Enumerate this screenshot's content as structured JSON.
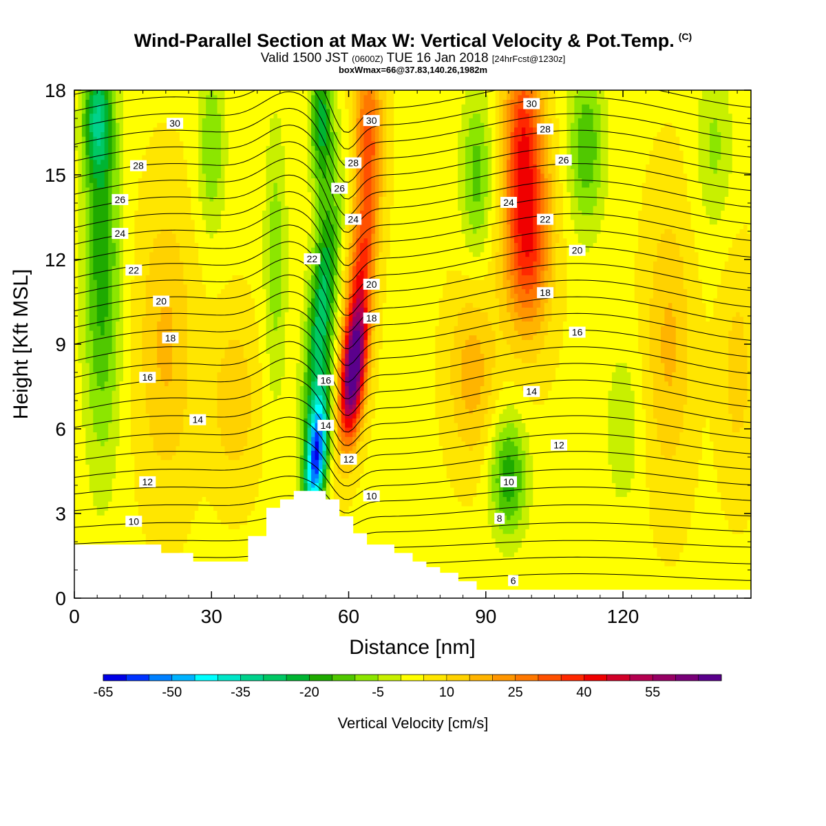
{
  "chart_data": {
    "type": "heatmap",
    "title": "Wind-Parallel Section at Max W: Vertical Velocity & Pot.Temp.",
    "title_mark": "(C)",
    "subtitle": {
      "main_a": "Valid 1500 JST",
      "small_a": "(0600Z)",
      "main_b": "TUE 16 Jan 2018",
      "small_b": "[24hrFcst@1230z]"
    },
    "subtitle2": "boxWmax=66@37.83,140.26,1982m",
    "xlabel": "Distance [nm]",
    "ylabel": "Height [Kft MSL]",
    "xlim": [
      0,
      148
    ],
    "ylim": [
      0,
      18
    ],
    "x_ticks": [
      "0",
      "30",
      "60",
      "90",
      "120"
    ],
    "x_tick_values": [
      0,
      30,
      60,
      90,
      120
    ],
    "y_ticks": [
      "0",
      "3",
      "6",
      "9",
      "12",
      "15",
      "18"
    ],
    "y_tick_values": [
      0,
      3,
      6,
      9,
      12,
      15,
      18
    ],
    "colorbar_label": "Vertical Velocity [cm/s]",
    "colorbar_ticks": [
      "-65",
      "-50",
      "-35",
      "-20",
      "-5",
      "10",
      "25",
      "40",
      "55"
    ],
    "colorbar_levels": [
      -65,
      -60,
      -55,
      -50,
      -45,
      -40,
      -35,
      -30,
      -25,
      -20,
      -15,
      -10,
      -5,
      0,
      5,
      10,
      15,
      20,
      25,
      30,
      35,
      40,
      45,
      50,
      55,
      60,
      65
    ],
    "colorbar_colors": [
      "#0000e6",
      "#0033ff",
      "#0080ff",
      "#00b3ff",
      "#00ffff",
      "#00e6c8",
      "#00d28c",
      "#00c864",
      "#00b432",
      "#1eaa00",
      "#50c800",
      "#8ce600",
      "#c8f000",
      "#ffff00",
      "#ffe600",
      "#ffd200",
      "#ffb400",
      "#ff9600",
      "#ff7800",
      "#ff5000",
      "#ff2800",
      "#f00000",
      "#d20028",
      "#b40050",
      "#960064",
      "#780078",
      "#5a008c"
    ],
    "theta_contours_c": [
      6,
      8,
      10,
      12,
      14,
      16,
      18,
      20,
      22,
      24,
      26,
      28,
      30
    ],
    "theta_labels": [
      {
        "x": 22,
        "y": 16.8,
        "v": "30"
      },
      {
        "x": 14,
        "y": 15.3,
        "v": "28"
      },
      {
        "x": 10,
        "y": 14.1,
        "v": "26"
      },
      {
        "x": 10,
        "y": 12.9,
        "v": "24"
      },
      {
        "x": 13,
        "y": 11.6,
        "v": "22"
      },
      {
        "x": 19,
        "y": 10.5,
        "v": "20"
      },
      {
        "x": 21,
        "y": 9.2,
        "v": "18"
      },
      {
        "x": 16,
        "y": 7.8,
        "v": "16"
      },
      {
        "x": 27,
        "y": 6.3,
        "v": "14"
      },
      {
        "x": 16,
        "y": 4.1,
        "v": "12"
      },
      {
        "x": 13,
        "y": 2.7,
        "v": "10"
      },
      {
        "x": 65,
        "y": 16.9,
        "v": "30"
      },
      {
        "x": 61,
        "y": 15.4,
        "v": "28"
      },
      {
        "x": 58,
        "y": 14.5,
        "v": "26"
      },
      {
        "x": 61,
        "y": 13.4,
        "v": "24"
      },
      {
        "x": 52,
        "y": 12.0,
        "v": "22"
      },
      {
        "x": 65,
        "y": 11.1,
        "v": "20"
      },
      {
        "x": 65,
        "y": 9.9,
        "v": "18"
      },
      {
        "x": 55,
        "y": 7.7,
        "v": "16"
      },
      {
        "x": 55,
        "y": 6.1,
        "v": "14"
      },
      {
        "x": 60,
        "y": 4.9,
        "v": "12"
      },
      {
        "x": 65,
        "y": 3.6,
        "v": "10"
      },
      {
        "x": 100,
        "y": 17.5,
        "v": "30"
      },
      {
        "x": 103,
        "y": 16.6,
        "v": "28"
      },
      {
        "x": 107,
        "y": 15.5,
        "v": "26"
      },
      {
        "x": 95,
        "y": 14.0,
        "v": "24"
      },
      {
        "x": 103,
        "y": 13.4,
        "v": "22"
      },
      {
        "x": 110,
        "y": 12.3,
        "v": "20"
      },
      {
        "x": 103,
        "y": 10.8,
        "v": "18"
      },
      {
        "x": 110,
        "y": 9.4,
        "v": "16"
      },
      {
        "x": 100,
        "y": 7.3,
        "v": "14"
      },
      {
        "x": 106,
        "y": 5.4,
        "v": "12"
      },
      {
        "x": 95,
        "y": 4.1,
        "v": "10"
      },
      {
        "x": 93,
        "y": 2.8,
        "v": "8"
      },
      {
        "x": 96,
        "y": 0.6,
        "v": "6"
      }
    ],
    "terrain": [
      [
        0,
        1.9
      ],
      [
        19,
        1.9
      ],
      [
        19,
        1.6
      ],
      [
        26,
        1.6
      ],
      [
        26,
        1.3
      ],
      [
        38,
        1.3
      ],
      [
        38,
        2.2
      ],
      [
        42,
        2.2
      ],
      [
        42,
        3.2
      ],
      [
        45,
        3.2
      ],
      [
        45,
        3.5
      ],
      [
        48,
        3.5
      ],
      [
        48,
        3.8
      ],
      [
        55,
        3.8
      ],
      [
        55,
        3.5
      ],
      [
        58,
        3.5
      ],
      [
        58,
        2.9
      ],
      [
        61,
        2.9
      ],
      [
        61,
        2.3
      ],
      [
        64,
        2.3
      ],
      [
        64,
        1.9
      ],
      [
        70,
        1.9
      ],
      [
        70,
        1.6
      ],
      [
        74,
        1.6
      ],
      [
        74,
        1.3
      ],
      [
        77,
        1.3
      ],
      [
        77,
        1.1
      ],
      [
        80,
        1.1
      ],
      [
        80,
        0.9
      ],
      [
        84,
        0.9
      ],
      [
        84,
        0.6
      ],
      [
        88,
        0.6
      ],
      [
        88,
        0.3
      ],
      [
        148,
        0.3
      ]
    ]
  }
}
